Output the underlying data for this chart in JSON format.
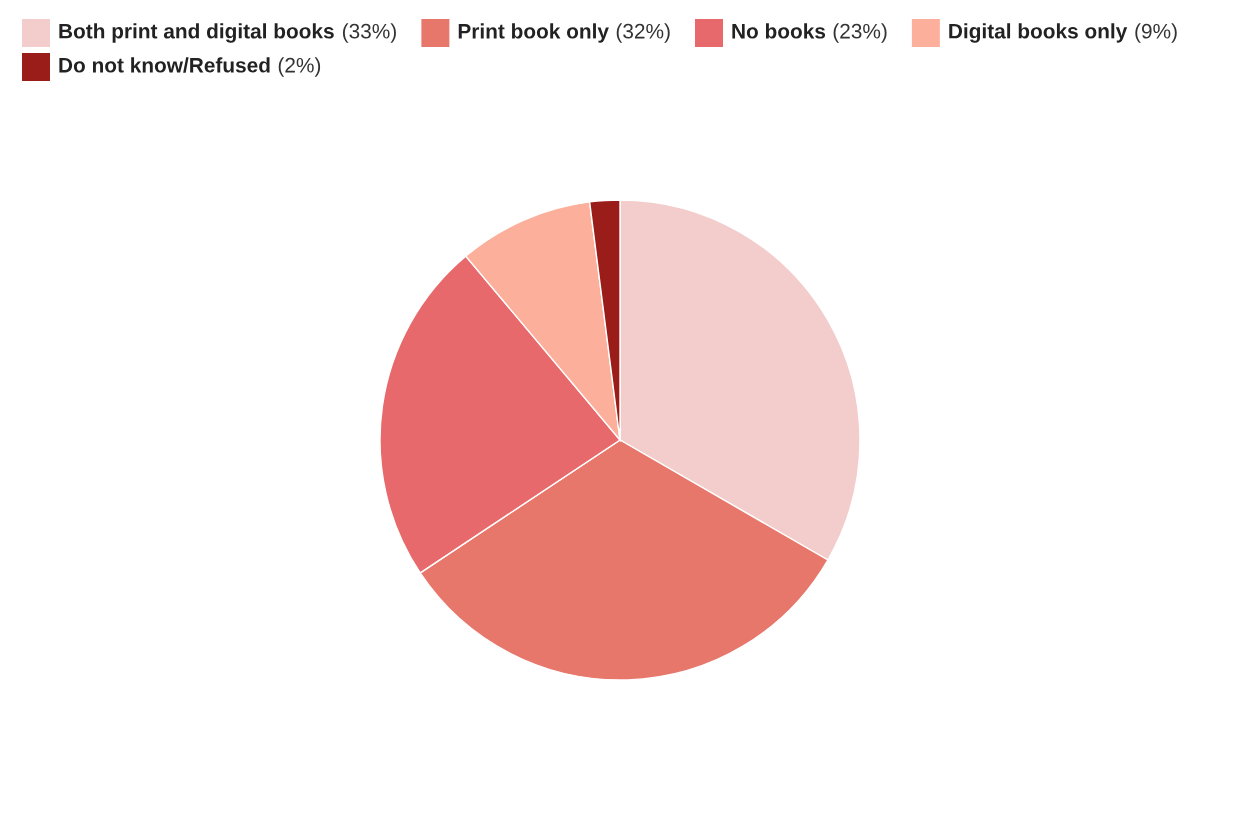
{
  "chart_data": {
    "type": "pie",
    "categories": [
      "Both print and digital books",
      "Print book only",
      "No books",
      "Digital books only",
      "Do not know/Refused"
    ],
    "values": [
      33,
      32,
      23,
      9,
      2
    ],
    "value_labels": [
      "(33%)",
      "(32%)",
      "(23%)",
      "(9%)",
      "(2%)"
    ],
    "colors": [
      "#f3cccc",
      "#e8776b",
      "#e8696b",
      "#fcb09b",
      "#9b1d1a"
    ],
    "legend": "top left"
  }
}
